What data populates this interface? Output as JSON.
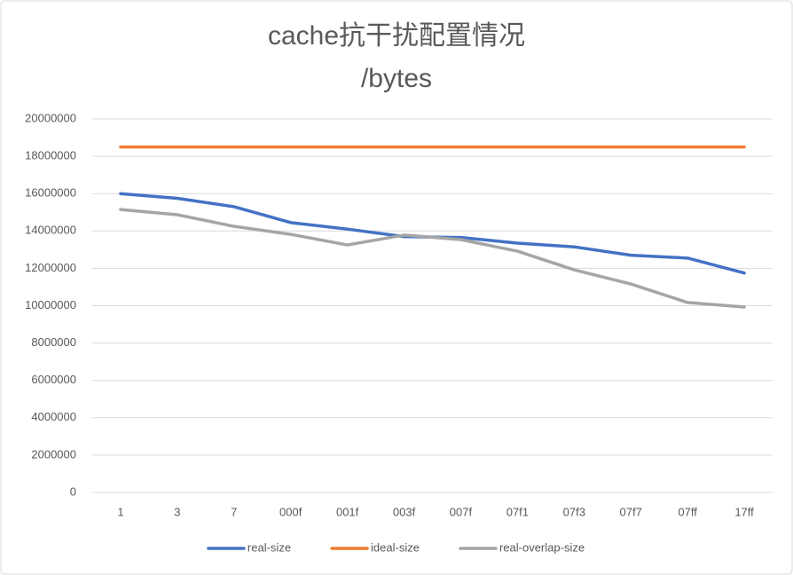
{
  "chart_data": {
    "type": "line",
    "title": [
      "cache抗干扰配置情况",
      "/bytes"
    ],
    "categories": [
      "1",
      "3",
      "7",
      "000f",
      "001f",
      "003f",
      "007f",
      "07f1",
      "07f3",
      "07f7",
      "07ff",
      "17ff"
    ],
    "series": [
      {
        "name": "real-size",
        "color": "#4472c4",
        "values": [
          16000000,
          15750000,
          15300000,
          14450000,
          14100000,
          13700000,
          13650000,
          13350000,
          13150000,
          12700000,
          12550000,
          11750000
        ]
      },
      {
        "name": "ideal-size",
        "color": "#ed7d31",
        "values": [
          18500000,
          18500000,
          18500000,
          18500000,
          18500000,
          18500000,
          18500000,
          18500000,
          18500000,
          18500000,
          18500000,
          18500000
        ]
      },
      {
        "name": "real-overlap-size",
        "color": "#a5a5a5",
        "values": [
          15150000,
          14870000,
          14250000,
          13820000,
          13250000,
          13780000,
          13540000,
          12920000,
          11920000,
          11160000,
          10170000,
          9930000
        ]
      }
    ],
    "ylim": [
      0,
      20000000
    ],
    "yticks": [
      0,
      2000000,
      4000000,
      6000000,
      8000000,
      10000000,
      12000000,
      14000000,
      16000000,
      18000000,
      20000000
    ],
    "grid": true,
    "legend": "bottom"
  }
}
